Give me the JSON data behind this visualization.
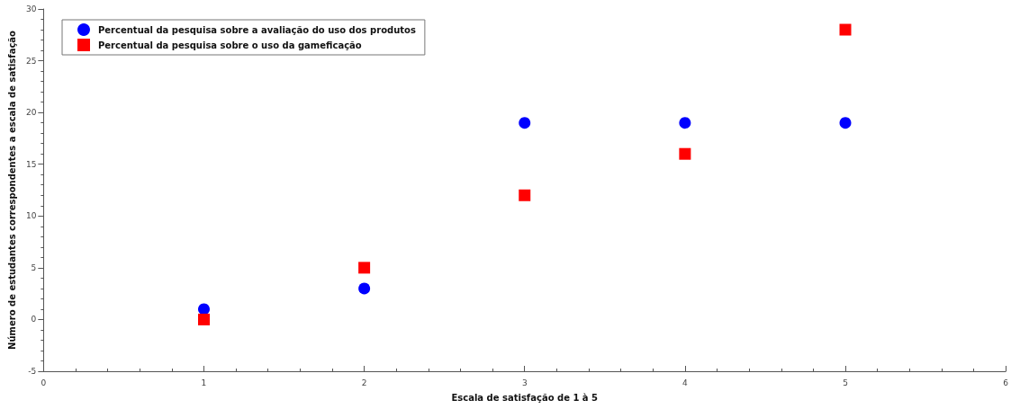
{
  "chart_data": {
    "type": "scatter",
    "xlabel": "Escala de satisfação de 1 à 5",
    "ylabel": "Número de estudantes correspondentes a escala de satisfação",
    "x": [
      1,
      2,
      3,
      4,
      5
    ],
    "series": [
      {
        "name": "Percentual da pesquisa sobre a avaliação do uso dos produtos",
        "color": "#0000ff",
        "marker": "circle",
        "values": [
          1,
          3,
          19,
          19,
          19
        ]
      },
      {
        "name": "Percentual da pesquisa sobre o uso da gameficação",
        "color": "#ff0000",
        "marker": "square",
        "values": [
          0,
          5,
          12,
          16,
          28
        ]
      }
    ],
    "xlim": [
      0,
      6
    ],
    "xticks": [
      0,
      {
        "value": 0.2,
        "label": null
      },
      {
        "value": 0.4,
        "label": null
      },
      {
        "value": 0.6,
        "label": null
      },
      {
        "value": 0.8,
        "label": null
      },
      1,
      {
        "value": 1.2,
        "label": null
      },
      {
        "value": 1.4,
        "label": null
      },
      {
        "value": 1.6,
        "label": null
      },
      {
        "value": 1.8,
        "label": null
      },
      2,
      {
        "value": 2.2,
        "label": null
      },
      {
        "value": 2.4,
        "label": null
      },
      {
        "value": 2.6,
        "label": null
      },
      {
        "value": 2.8,
        "label": null
      },
      3,
      {
        "value": 3.2,
        "label": null
      },
      {
        "value": 3.4,
        "label": null
      },
      {
        "value": 3.6,
        "label": null
      },
      {
        "value": 3.8,
        "label": null
      },
      4,
      {
        "value": 4.2,
        "label": null
      },
      {
        "value": 4.4,
        "label": null
      },
      {
        "value": 4.6,
        "label": null
      },
      {
        "value": 4.8,
        "label": null
      },
      5,
      {
        "value": 5.2,
        "label": null
      },
      {
        "value": 5.4,
        "label": null
      },
      {
        "value": 5.6,
        "label": null
      },
      {
        "value": 5.8,
        "label": null
      },
      6
    ],
    "ylim": [
      -5,
      30
    ],
    "yticks": [
      -5,
      {
        "value": -4,
        "label": null
      },
      {
        "value": -3,
        "label": null
      },
      {
        "value": -2,
        "label": null
      },
      {
        "value": -1,
        "label": null
      },
      0,
      {
        "value": 1,
        "label": null
      },
      {
        "value": 2,
        "label": null
      },
      {
        "value": 3,
        "label": null
      },
      {
        "value": 4,
        "label": null
      },
      5,
      {
        "value": 6,
        "label": null
      },
      {
        "value": 7,
        "label": null
      },
      {
        "value": 8,
        "label": null
      },
      {
        "value": 9,
        "label": null
      },
      10,
      {
        "value": 11,
        "label": null
      },
      {
        "value": 12,
        "label": null
      },
      {
        "value": 13,
        "label": null
      },
      {
        "value": 14,
        "label": null
      },
      15,
      {
        "value": 16,
        "label": null
      },
      {
        "value": 17,
        "label": null
      },
      {
        "value": 18,
        "label": null
      },
      {
        "value": 19,
        "label": null
      },
      20,
      {
        "value": 21,
        "label": null
      },
      {
        "value": 22,
        "label": null
      },
      {
        "value": 23,
        "label": null
      },
      {
        "value": 24,
        "label": null
      },
      25,
      {
        "value": 26,
        "label": null
      },
      {
        "value": 27,
        "label": null
      },
      {
        "value": 28,
        "label": null
      },
      {
        "value": 29,
        "label": null
      },
      30
    ],
    "grid": false,
    "legend": "top left"
  }
}
